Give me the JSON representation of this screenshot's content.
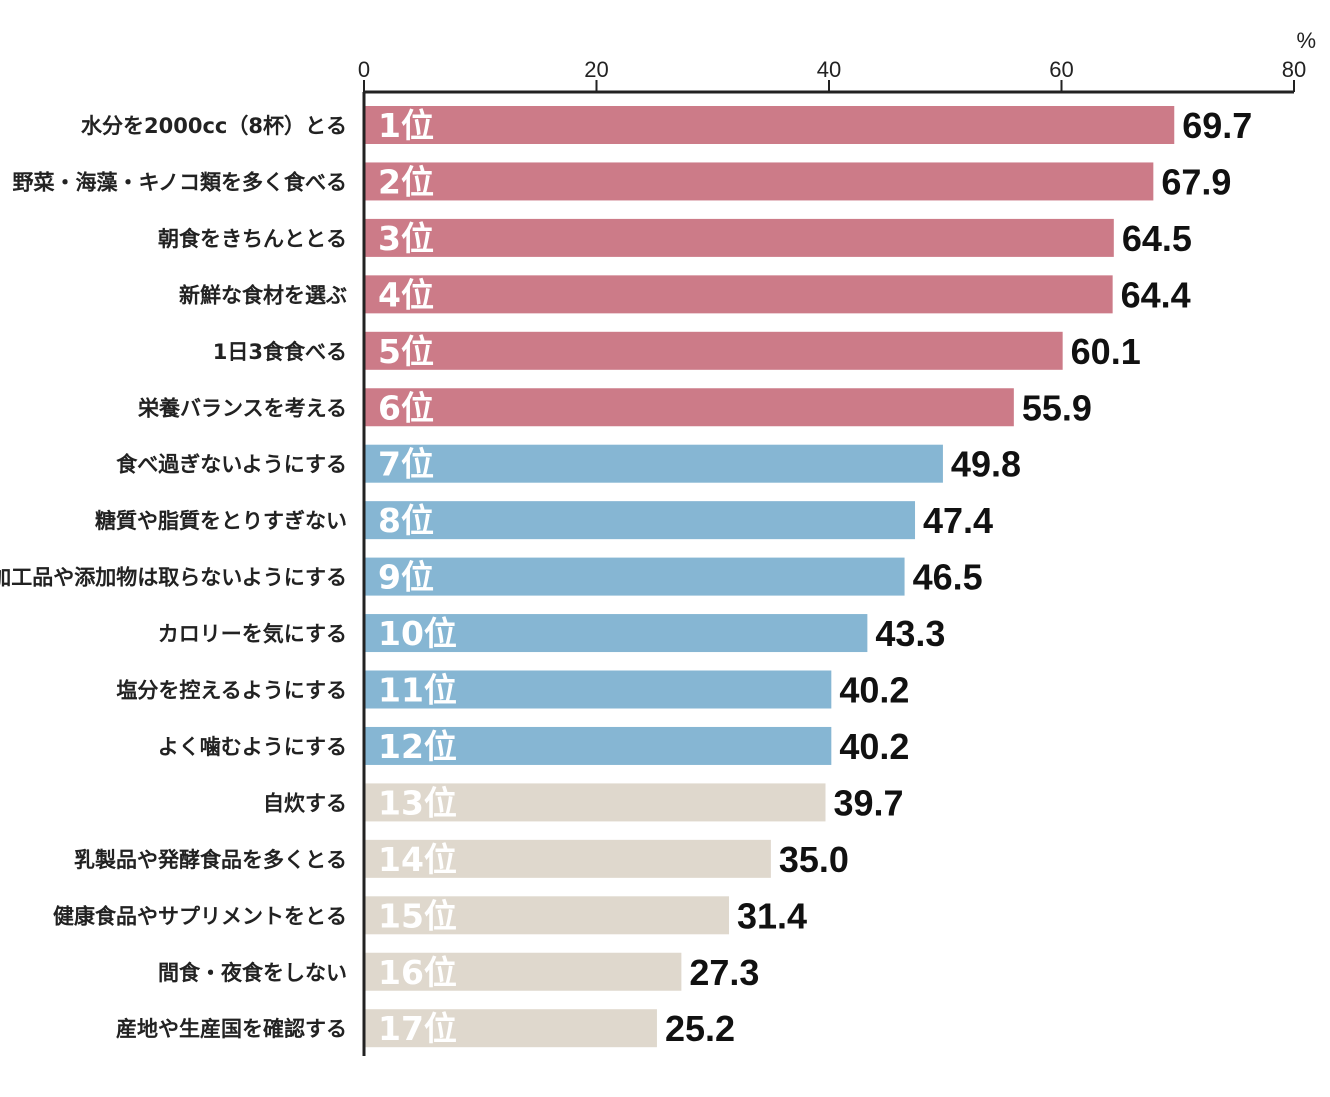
{
  "chart_data": {
    "type": "bar",
    "orientation": "horizontal",
    "unit": "%",
    "xlim": [
      0,
      80
    ],
    "xticks": [
      0,
      20,
      40,
      60,
      80
    ],
    "grid": false,
    "categories": [
      "水分を2000cc（8杯）とる",
      "野菜・海藻・キノコ類を多く食べる",
      "朝食をきちんととる",
      "新鮮な食材を選ぶ",
      "1日3食食べる",
      "栄養バランスを考える",
      "食べ過ぎないようにする",
      "糖質や脂質をとりすぎない",
      "加工品や添加物は取らないようにする",
      "カロリーを気にする",
      "塩分を控えるようにする",
      "よく噛むようにする",
      "自炊する",
      "乳製品や発酵食品を多くとる",
      "健康食品やサプリメントをとる",
      "間食・夜食をしない",
      "産地や生産国を確認する"
    ],
    "ranks": [
      "1位",
      "2位",
      "3位",
      "4位",
      "5位",
      "6位",
      "7位",
      "8位",
      "9位",
      "10位",
      "11位",
      "12位",
      "13位",
      "14位",
      "15位",
      "16位",
      "17位"
    ],
    "values": [
      69.7,
      67.9,
      64.5,
      64.4,
      60.1,
      55.9,
      49.8,
      47.4,
      46.5,
      43.3,
      40.2,
      40.2,
      39.7,
      35.0,
      31.4,
      27.3,
      25.2
    ],
    "value_labels": [
      "69.7",
      "67.9",
      "64.5",
      "64.4",
      "60.1",
      "55.9",
      "49.8",
      "47.4",
      "46.5",
      "43.3",
      "40.2",
      "40.2",
      "39.7",
      "35.0",
      "31.4",
      "27.3",
      "25.2"
    ],
    "groups": [
      "pink",
      "pink",
      "pink",
      "pink",
      "pink",
      "pink",
      "blue",
      "blue",
      "blue",
      "blue",
      "blue",
      "blue",
      "beige",
      "beige",
      "beige",
      "beige",
      "beige"
    ]
  },
  "colors": {
    "pink": "#cc7b88",
    "blue": "#86b6d3",
    "beige": "#dfd8cd",
    "axis": "#222222"
  }
}
